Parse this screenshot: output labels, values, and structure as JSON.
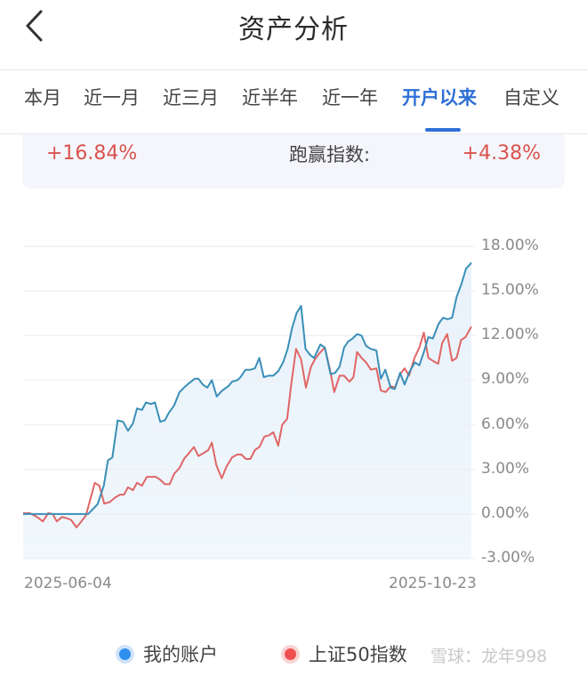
{
  "header": {
    "title": "资产分析",
    "back_icon": "chevron-left-icon"
  },
  "tabs": [
    {
      "label": "本月",
      "active": false
    },
    {
      "label": "近一月",
      "active": false
    },
    {
      "label": "近三月",
      "active": false
    },
    {
      "label": "近半年",
      "active": false
    },
    {
      "label": "近一年",
      "active": false
    },
    {
      "label": "开户以来",
      "active": true
    },
    {
      "label": "自定义",
      "active": false
    }
  ],
  "summary": {
    "account_return": "+16.84%",
    "beat_index_label": "跑赢指数:",
    "beat_index_value": "+4.38%"
  },
  "colors": {
    "accent": "#2d6fd6",
    "positive": "#d9534f",
    "account_line": "#3a8fb7",
    "index_line": "#e06666",
    "area_fill": "#eaf4fc"
  },
  "legend": {
    "items": [
      {
        "label": "我的账户",
        "color": "#2f8fef"
      },
      {
        "label": "上证50指数",
        "color": "#ef4f4f"
      }
    ],
    "watermark": "雪球：龙年998"
  },
  "chart_data": {
    "type": "line",
    "title": "",
    "xlabel": "",
    "ylabel": "",
    "x_tick_labels": [
      "2025-06-04",
      "2025-10-23"
    ],
    "y_tick_labels": [
      "18.00%",
      "15.00%",
      "12.00%",
      "9.00%",
      "6.00%",
      "3.00%",
      "0.00%",
      "-3.00%"
    ],
    "ylim": [
      -3,
      18
    ],
    "grid": true,
    "legend_position": "bottom",
    "x_range": [
      "2025-06-04",
      "2025-10-23"
    ],
    "series": [
      {
        "name": "我的账户",
        "color": "#3a8fb7",
        "fill": true,
        "points": [
          [
            0,
            0
          ],
          [
            0.145,
            0
          ],
          [
            0.166,
            0.66
          ],
          [
            0.18,
            1.9
          ],
          [
            0.189,
            3.6
          ],
          [
            0.199,
            3.8
          ],
          [
            0.211,
            6.3
          ],
          [
            0.223,
            6.2
          ],
          [
            0.234,
            5.6
          ],
          [
            0.245,
            6.1
          ],
          [
            0.254,
            7.1
          ],
          [
            0.265,
            7.0
          ],
          [
            0.274,
            7.5
          ],
          [
            0.285,
            7.4
          ],
          [
            0.294,
            7.5
          ],
          [
            0.306,
            6.2
          ],
          [
            0.316,
            6.3
          ],
          [
            0.325,
            6.8
          ],
          [
            0.337,
            7.3
          ],
          [
            0.349,
            8.2
          ],
          [
            0.359,
            8.5
          ],
          [
            0.37,
            8.8
          ],
          [
            0.383,
            9.1
          ],
          [
            0.391,
            9.1
          ],
          [
            0.401,
            8.7
          ],
          [
            0.411,
            8.5
          ],
          [
            0.421,
            9.0
          ],
          [
            0.432,
            7.9
          ],
          [
            0.444,
            8.3
          ],
          [
            0.458,
            8.6
          ],
          [
            0.466,
            8.9
          ],
          [
            0.478,
            9.0
          ],
          [
            0.485,
            9.2
          ],
          [
            0.496,
            9.7
          ],
          [
            0.507,
            9.7
          ],
          [
            0.517,
            9.8
          ],
          [
            0.527,
            10.5
          ],
          [
            0.537,
            9.2
          ],
          [
            0.547,
            9.3
          ],
          [
            0.558,
            9.3
          ],
          [
            0.569,
            9.6
          ],
          [
            0.58,
            10.2
          ],
          [
            0.59,
            11.1
          ],
          [
            0.6,
            12.5
          ],
          [
            0.61,
            13.5
          ],
          [
            0.62,
            14.0
          ],
          [
            0.63,
            11.1
          ],
          [
            0.64,
            10.7
          ],
          [
            0.649,
            10.5
          ],
          [
            0.663,
            11.4
          ],
          [
            0.673,
            11.2
          ],
          [
            0.686,
            9.4
          ],
          [
            0.696,
            9.5
          ],
          [
            0.706,
            9.9
          ],
          [
            0.716,
            11.2
          ],
          [
            0.725,
            11.6
          ],
          [
            0.735,
            11.8
          ],
          [
            0.745,
            12.1
          ],
          [
            0.755,
            12.0
          ],
          [
            0.765,
            11.3
          ],
          [
            0.776,
            11.1
          ],
          [
            0.788,
            11.0
          ],
          [
            0.798,
            9.1
          ],
          [
            0.808,
            9.7
          ],
          [
            0.82,
            8.5
          ],
          [
            0.829,
            8.4
          ],
          [
            0.841,
            9.5
          ],
          [
            0.851,
            8.7
          ],
          [
            0.861,
            9.5
          ],
          [
            0.874,
            10.2
          ],
          [
            0.884,
            10.0
          ],
          [
            0.894,
            10.9
          ],
          [
            0.904,
            11.9
          ],
          [
            0.914,
            11.8
          ],
          [
            0.927,
            12.8
          ],
          [
            0.937,
            13.2
          ],
          [
            0.947,
            13.1
          ],
          [
            0.957,
            13.2
          ],
          [
            0.967,
            14.6
          ],
          [
            0.977,
            15.4
          ],
          [
            0.988,
            16.5
          ],
          [
            1.0,
            16.9
          ]
        ]
      },
      {
        "name": "上证50指数",
        "color": "#e06666",
        "fill": false,
        "points": [
          [
            0,
            0.06
          ],
          [
            0.015,
            0.06
          ],
          [
            0.031,
            -0.2
          ],
          [
            0.044,
            -0.5
          ],
          [
            0.056,
            0.06
          ],
          [
            0.066,
            0.0
          ],
          [
            0.075,
            -0.5
          ],
          [
            0.087,
            -0.2
          ],
          [
            0.099,
            -0.3
          ],
          [
            0.107,
            -0.4
          ],
          [
            0.119,
            -0.9
          ],
          [
            0.13,
            -0.5
          ],
          [
            0.14,
            -0.1
          ],
          [
            0.15,
            1.0
          ],
          [
            0.16,
            2.1
          ],
          [
            0.17,
            1.9
          ],
          [
            0.181,
            0.7
          ],
          [
            0.193,
            0.8
          ],
          [
            0.205,
            1.1
          ],
          [
            0.216,
            1.3
          ],
          [
            0.225,
            1.3
          ],
          [
            0.234,
            1.8
          ],
          [
            0.245,
            1.6
          ],
          [
            0.254,
            2.1
          ],
          [
            0.265,
            1.9
          ],
          [
            0.276,
            2.5
          ],
          [
            0.286,
            2.5
          ],
          [
            0.296,
            2.5
          ],
          [
            0.306,
            2.3
          ],
          [
            0.316,
            2.0
          ],
          [
            0.327,
            2.0
          ],
          [
            0.337,
            2.7
          ],
          [
            0.349,
            3.1
          ],
          [
            0.359,
            3.7
          ],
          [
            0.37,
            4.1
          ],
          [
            0.381,
            4.5
          ],
          [
            0.391,
            3.9
          ],
          [
            0.403,
            4.1
          ],
          [
            0.413,
            4.3
          ],
          [
            0.421,
            4.8
          ],
          [
            0.431,
            3.3
          ],
          [
            0.443,
            2.4
          ],
          [
            0.454,
            3.2
          ],
          [
            0.466,
            3.8
          ],
          [
            0.478,
            4.0
          ],
          [
            0.487,
            4.0
          ],
          [
            0.497,
            3.7
          ],
          [
            0.507,
            3.7
          ],
          [
            0.517,
            4.3
          ],
          [
            0.527,
            4.5
          ],
          [
            0.538,
            5.2
          ],
          [
            0.549,
            5.3
          ],
          [
            0.558,
            5.5
          ],
          [
            0.569,
            4.6
          ],
          [
            0.578,
            6.0
          ],
          [
            0.589,
            6.4
          ],
          [
            0.598,
            8.7
          ],
          [
            0.609,
            11.1
          ],
          [
            0.62,
            10.4
          ],
          [
            0.631,
            8.5
          ],
          [
            0.642,
            9.9
          ],
          [
            0.651,
            10.4
          ],
          [
            0.661,
            10.8
          ],
          [
            0.673,
            11.2
          ],
          [
            0.684,
            9.8
          ],
          [
            0.694,
            8.2
          ],
          [
            0.706,
            9.3
          ],
          [
            0.716,
            9.3
          ],
          [
            0.728,
            8.9
          ],
          [
            0.737,
            9.2
          ],
          [
            0.745,
            10.9
          ],
          [
            0.755,
            10.5
          ],
          [
            0.765,
            10.2
          ],
          [
            0.776,
            9.7
          ],
          [
            0.788,
            9.8
          ],
          [
            0.798,
            8.3
          ],
          [
            0.809,
            8.2
          ],
          [
            0.82,
            8.6
          ],
          [
            0.829,
            8.5
          ],
          [
            0.841,
            9.4
          ],
          [
            0.851,
            9.8
          ],
          [
            0.861,
            9.3
          ],
          [
            0.873,
            10.5
          ],
          [
            0.884,
            11.2
          ],
          [
            0.894,
            12.2
          ],
          [
            0.904,
            10.5
          ],
          [
            0.914,
            10.3
          ],
          [
            0.926,
            10.1
          ],
          [
            0.935,
            11.5
          ],
          [
            0.946,
            12.1
          ],
          [
            0.957,
            10.3
          ],
          [
            0.967,
            10.5
          ],
          [
            0.977,
            11.7
          ],
          [
            0.987,
            11.9
          ],
          [
            1.0,
            12.6
          ]
        ]
      }
    ]
  }
}
